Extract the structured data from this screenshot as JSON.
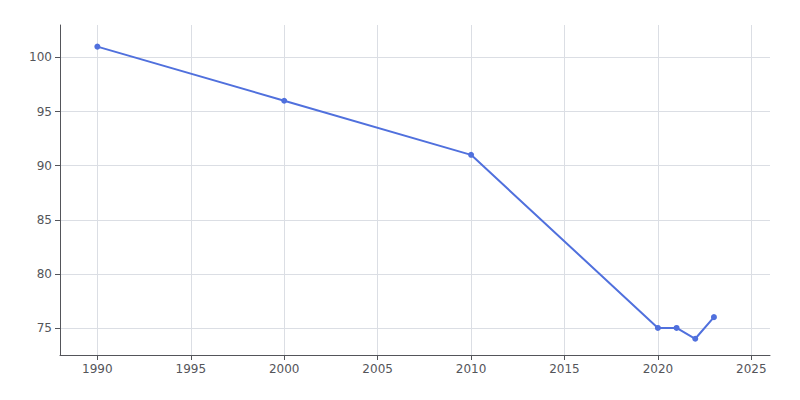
{
  "chart_data": {
    "type": "line",
    "x": [
      1990,
      2000,
      2010,
      2020,
      2021,
      2022,
      2023
    ],
    "values": [
      101,
      96,
      91,
      75,
      75,
      74,
      76
    ],
    "xlim": [
      1988,
      2026
    ],
    "ylim": [
      72.5,
      103
    ],
    "xticks": [
      1990,
      1995,
      2000,
      2005,
      2010,
      2015,
      2020,
      2025
    ],
    "yticks": [
      75,
      80,
      85,
      90,
      95,
      100
    ],
    "grid": true,
    "marker": "circle"
  }
}
